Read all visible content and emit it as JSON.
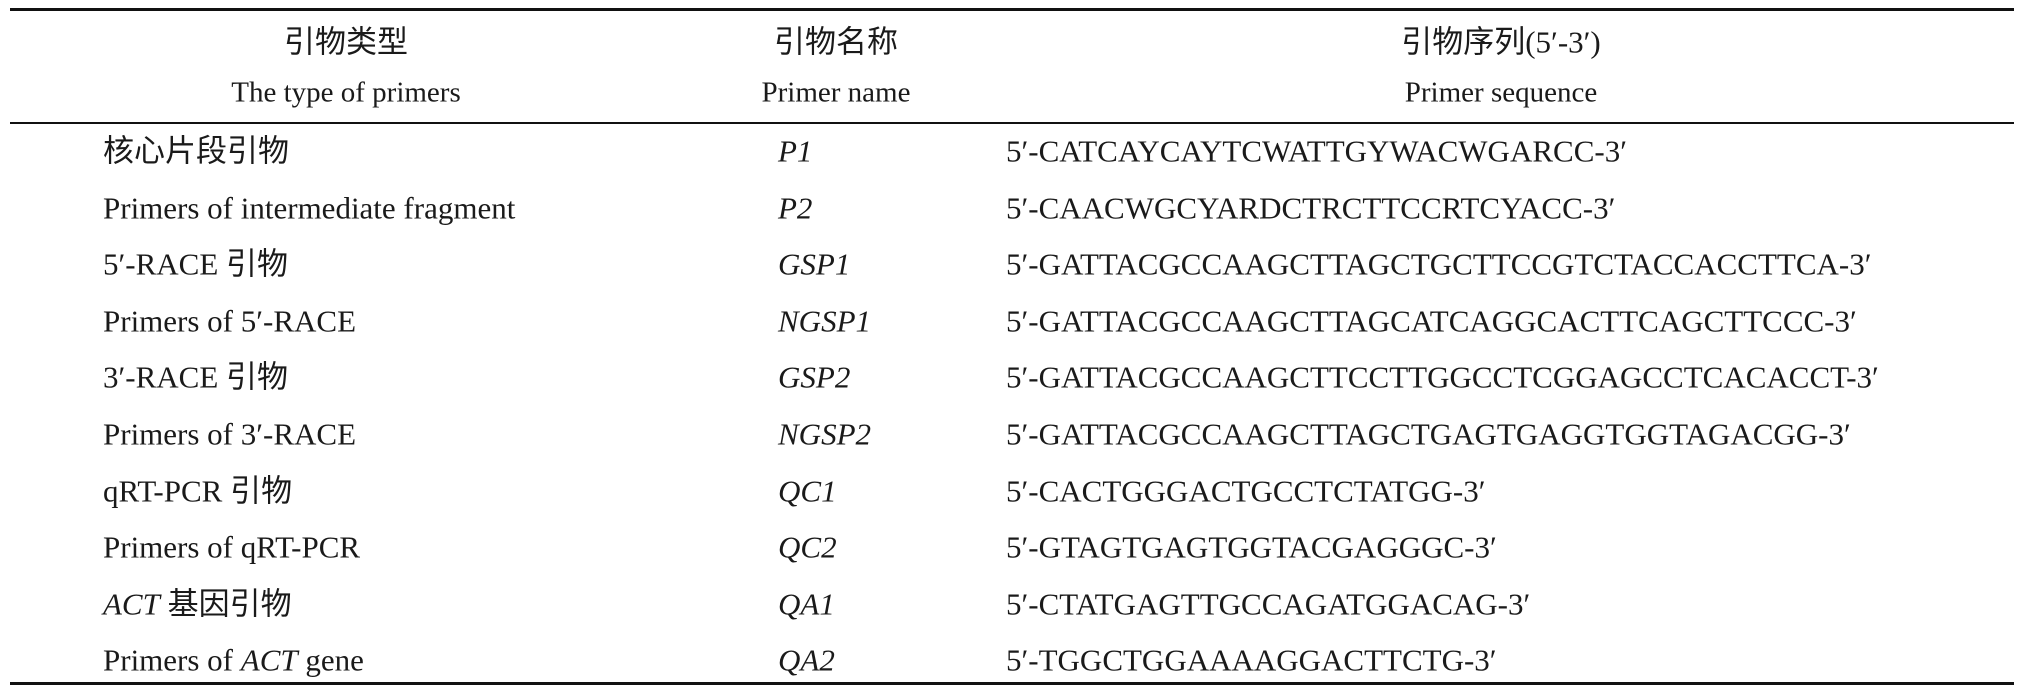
{
  "table": {
    "header": [
      {
        "zh": "引物类型",
        "en": "The type of primers"
      },
      {
        "zh": "引物名称",
        "en": "Primer name"
      },
      {
        "zh": "引物序列(5′-3′)",
        "en": "Primer sequence"
      }
    ],
    "rows": [
      [
        [
          "核心片段引物"
        ],
        "P1",
        "5′-CATCAYCAYTCWATTGYWACWGARCC-3′"
      ],
      [
        [
          "Primers of intermediate fragment"
        ],
        "P2",
        "5′-CAACWGCYARDCTRCTTCCRTCYACC-3′"
      ],
      [
        [
          "5′-RACE 引物"
        ],
        "GSP1",
        "5′-GATTACGCCAAGCTTAGCTGCTTCCGTCTACCACCTTCA-3′"
      ],
      [
        [
          "Primers of 5′-RACE"
        ],
        "NGSP1",
        "5′-GATTACGCCAAGCTTAGCATCAGGCACTTCAGCTTCCC-3′"
      ],
      [
        [
          "3′-RACE 引物"
        ],
        "GSP2",
        "5′-GATTACGCCAAGCTTCCTTGGCCTCGGAGCCTCACACCT-3′"
      ],
      [
        [
          "Primers of 3′-RACE"
        ],
        "NGSP2",
        "5′-GATTACGCCAAGCTTAGCTGAGTGAGGTGGTAGACGG-3′"
      ],
      [
        [
          "qRT-PCR 引物"
        ],
        "QC1",
        "5′-CACTGGGACTGCCTCTATGG-3′"
      ],
      [
        [
          "Primers of qRT-PCR"
        ],
        "QC2",
        "5′-GTAGTGAGTGGTACGAGGGC-3′"
      ],
      [
        [
          {
            "text": "ACT",
            "italic": true
          },
          " 基因引物"
        ],
        "QA1",
        "5′-CTATGAGTTGCCAGATGGACAG-3′"
      ],
      [
        [
          "Primers of ",
          {
            "text": "ACT",
            "italic": true
          },
          " gene"
        ],
        "QA2",
        "5′-TGGCTGGAAAAGGACTTCTG-3′"
      ]
    ]
  }
}
